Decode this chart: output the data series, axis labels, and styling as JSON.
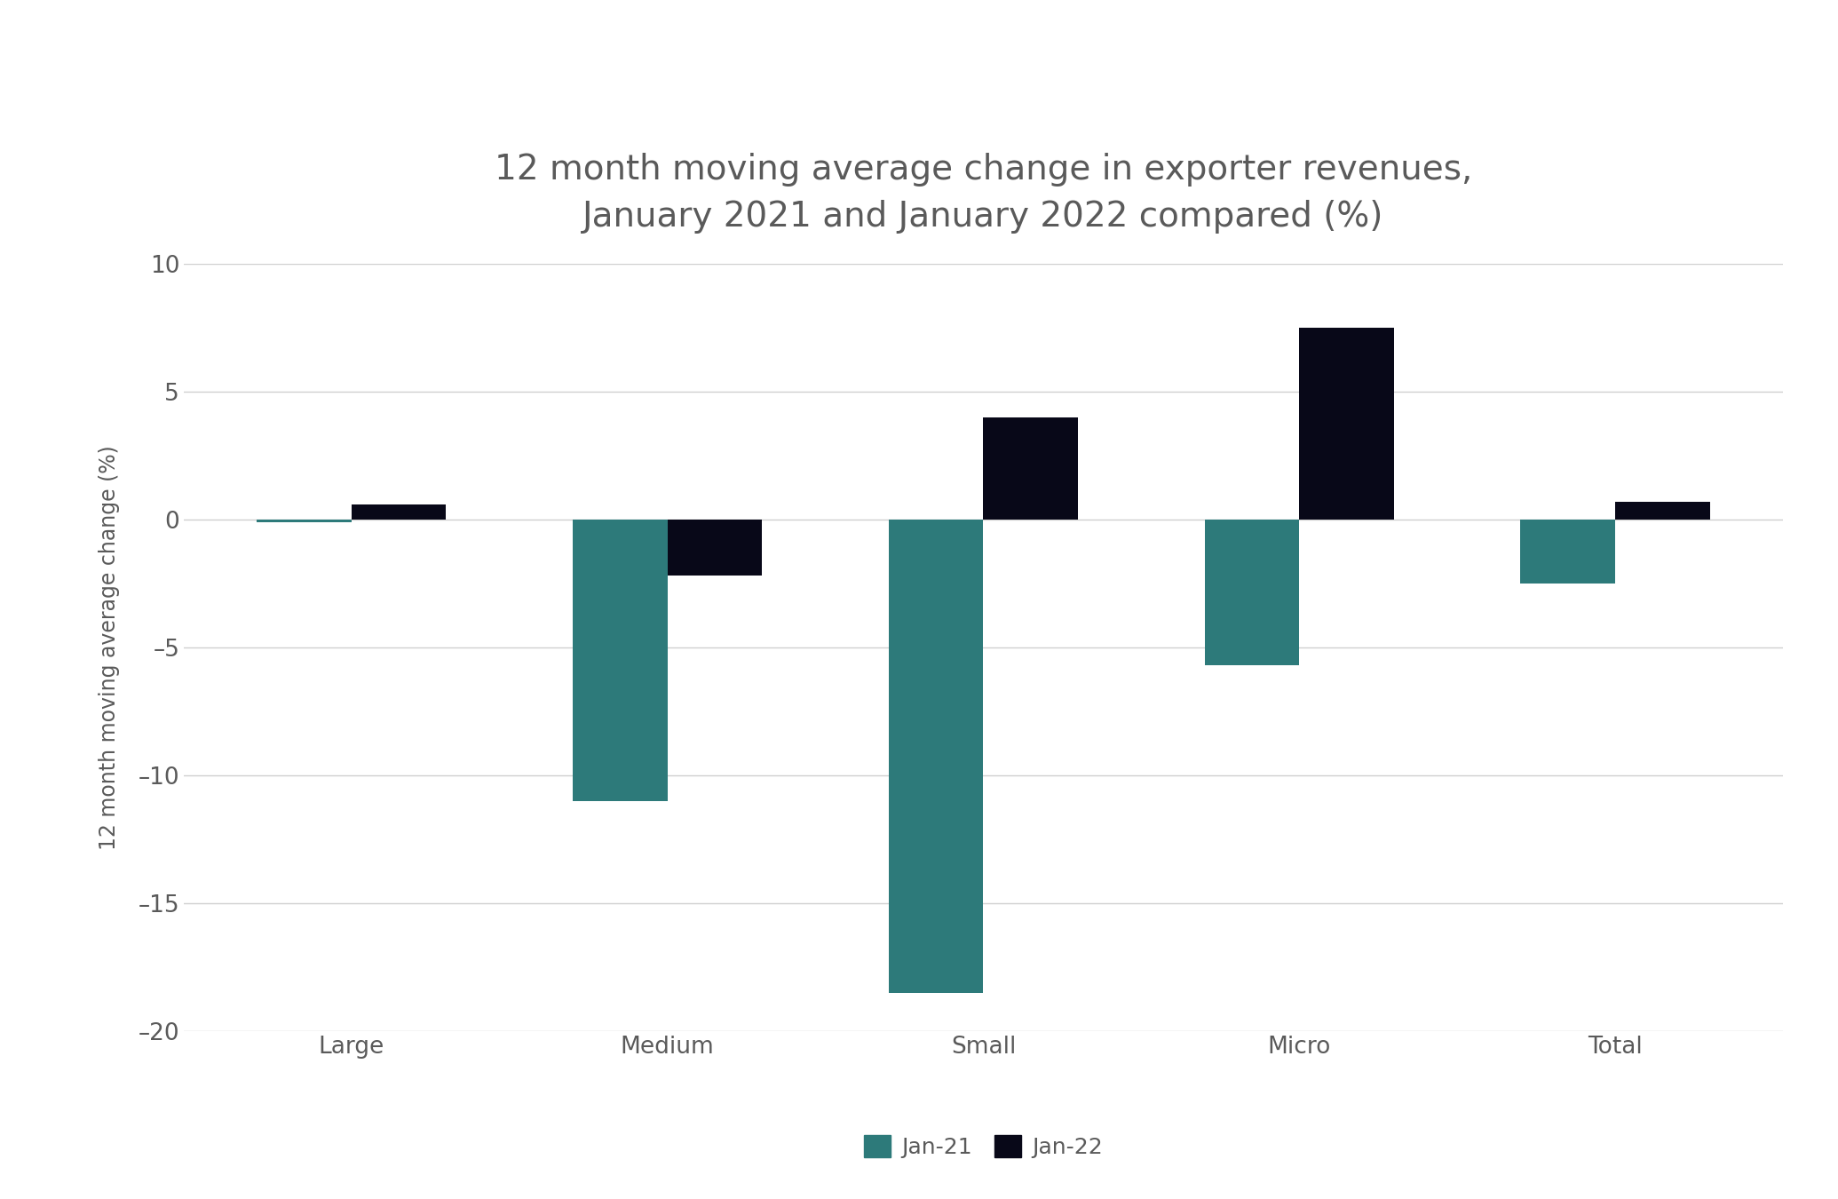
{
  "title": "12 month moving average change in exporter revenues,\nJanuary 2021 and January 2022 compared (%)",
  "categories": [
    "Large",
    "Medium",
    "Small",
    "Micro",
    "Total"
  ],
  "jan21_values": [
    -0.1,
    -11.0,
    -18.5,
    -5.7,
    -2.5
  ],
  "jan22_values": [
    0.6,
    -2.2,
    4.0,
    7.5,
    0.7
  ],
  "jan21_color": "#2d7a7a",
  "jan22_color": "#080818",
  "ylabel": "12 month moving average change (%)",
  "ylim": [
    -20,
    10
  ],
  "yticks": [
    -20,
    -15,
    -10,
    -5,
    0,
    5,
    10
  ],
  "background_color": "#ffffff",
  "grid_color": "#d0d0d0",
  "bar_width": 0.3,
  "title_fontsize": 28,
  "axis_label_fontsize": 17,
  "tick_fontsize": 19,
  "legend_fontsize": 18,
  "text_color": "#5a5a5a"
}
